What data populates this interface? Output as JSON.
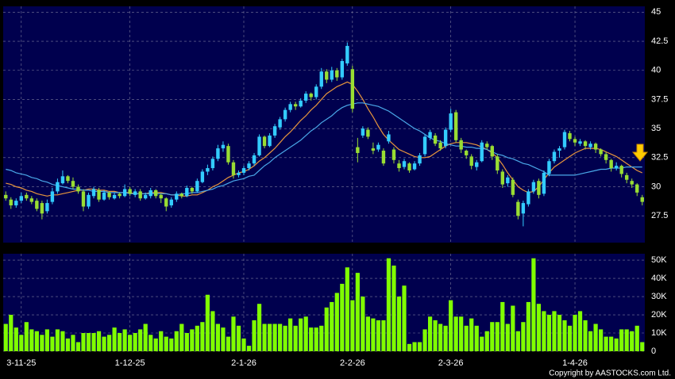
{
  "chart_data": [
    {
      "type": "candlestick",
      "categories": [
        null,
        null,
        null,
        "3-11-25",
        null,
        null,
        null,
        null,
        null,
        null,
        null,
        null,
        null,
        null,
        null,
        null,
        null,
        null,
        null,
        null,
        null,
        null,
        null,
        null,
        "1-12-25",
        null,
        null,
        null,
        null,
        null,
        null,
        null,
        null,
        null,
        null,
        null,
        null,
        null,
        null,
        null,
        null,
        null,
        null,
        null,
        null,
        null,
        "2-1-26",
        null,
        null,
        null,
        null,
        null,
        null,
        null,
        null,
        null,
        null,
        null,
        null,
        null,
        null,
        null,
        null,
        null,
        null,
        null,
        null,
        "2-2-26",
        null,
        null,
        null,
        null,
        null,
        null,
        null,
        null,
        null,
        null,
        null,
        null,
        null,
        null,
        null,
        null,
        null,
        null,
        "2-3-26",
        null,
        null,
        null,
        null,
        null,
        null,
        null,
        null,
        null,
        null,
        null,
        null,
        null,
        null,
        null,
        null,
        null,
        null,
        null,
        null,
        null,
        null,
        null,
        "1-4-26",
        null,
        null,
        null,
        null,
        null,
        null,
        null,
        null,
        null,
        null,
        null,
        null,
        null
      ],
      "ohlc": [
        [
          29.3,
          29.6,
          28.8,
          29.0
        ],
        [
          28.9,
          29.1,
          28.1,
          28.4
        ],
        [
          28.4,
          29.0,
          28.2,
          28.8
        ],
        [
          28.8,
          29.5,
          28.6,
          29.2
        ],
        [
          29.3,
          29.5,
          28.8,
          29.0
        ],
        [
          29.0,
          29.2,
          28.5,
          28.7
        ],
        [
          28.8,
          29.0,
          27.9,
          28.1
        ],
        [
          28.6,
          28.8,
          27.2,
          27.7
        ],
        [
          27.9,
          28.9,
          27.7,
          28.6
        ],
        [
          28.7,
          29.9,
          28.5,
          29.6
        ],
        [
          29.6,
          30.7,
          29.4,
          30.4
        ],
        [
          30.3,
          31.4,
          30.2,
          30.9
        ],
        [
          30.9,
          31.0,
          30.3,
          30.5
        ],
        [
          30.5,
          30.8,
          29.8,
          30.0
        ],
        [
          30.0,
          30.2,
          29.4,
          29.6
        ],
        [
          29.6,
          29.8,
          27.9,
          28.3
        ],
        [
          28.3,
          29.5,
          28.1,
          29.3
        ],
        [
          29.2,
          30.0,
          29.0,
          29.8
        ],
        [
          29.7,
          29.9,
          28.7,
          28.9
        ],
        [
          28.9,
          29.7,
          28.8,
          29.5
        ],
        [
          29.5,
          29.6,
          28.9,
          29.1
        ],
        [
          29.0,
          29.5,
          28.9,
          29.3
        ],
        [
          29.4,
          29.5,
          29.0,
          29.2
        ],
        [
          29.2,
          30.2,
          29.1,
          29.8
        ],
        [
          29.8,
          30.0,
          29.2,
          29.4
        ],
        [
          29.3,
          29.8,
          29.1,
          29.6
        ],
        [
          29.6,
          29.8,
          28.8,
          29.0
        ],
        [
          29.0,
          29.5,
          28.9,
          29.3
        ],
        [
          29.2,
          29.9,
          29.0,
          29.7
        ],
        [
          29.7,
          29.8,
          29.0,
          29.2
        ],
        [
          29.3,
          29.4,
          28.6,
          29.0
        ],
        [
          29.0,
          29.1,
          27.9,
          28.3
        ],
        [
          28.4,
          29.1,
          28.2,
          28.9
        ],
        [
          28.9,
          29.6,
          28.7,
          29.4
        ],
        [
          29.4,
          29.5,
          29.0,
          29.2
        ],
        [
          29.2,
          30.1,
          29.1,
          29.9
        ],
        [
          29.9,
          30.0,
          29.4,
          29.6
        ],
        [
          29.6,
          30.7,
          29.5,
          30.5
        ],
        [
          30.4,
          31.5,
          30.3,
          31.3
        ],
        [
          31.3,
          31.9,
          31.0,
          31.6
        ],
        [
          31.6,
          32.6,
          31.4,
          32.4
        ],
        [
          32.4,
          33.6,
          32.2,
          33.3
        ],
        [
          33.3,
          33.9,
          33.0,
          33.6
        ],
        [
          33.5,
          33.7,
          31.9,
          32.1
        ],
        [
          32.1,
          32.3,
          30.7,
          31.0
        ],
        [
          31.0,
          31.4,
          30.8,
          31.2
        ],
        [
          31.2,
          31.8,
          31.0,
          31.6
        ],
        [
          31.6,
          32.2,
          31.4,
          32.0
        ],
        [
          32.0,
          32.9,
          31.8,
          32.7
        ],
        [
          32.7,
          34.5,
          32.6,
          34.3
        ],
        [
          34.3,
          34.4,
          33.3,
          33.5
        ],
        [
          33.5,
          34.6,
          33.4,
          34.4
        ],
        [
          34.4,
          35.4,
          34.2,
          35.2
        ],
        [
          35.1,
          36.0,
          34.9,
          35.8
        ],
        [
          35.8,
          36.8,
          35.6,
          36.6
        ],
        [
          36.6,
          37.3,
          36.4,
          37.1
        ],
        [
          37.1,
          37.3,
          36.6,
          36.9
        ],
        [
          36.9,
          37.6,
          36.8,
          37.4
        ],
        [
          37.4,
          38.2,
          37.2,
          38.0
        ],
        [
          38.0,
          38.1,
          37.4,
          37.7
        ],
        [
          37.7,
          38.8,
          37.5,
          38.6
        ],
        [
          38.6,
          40.2,
          38.4,
          39.9
        ],
        [
          39.9,
          40.1,
          38.9,
          39.2
        ],
        [
          39.2,
          40.3,
          39.0,
          40.0
        ],
        [
          40.0,
          40.2,
          39.1,
          39.4
        ],
        [
          39.4,
          41.0,
          39.2,
          40.8
        ],
        [
          40.6,
          42.4,
          40.4,
          42.1
        ],
        [
          40.1,
          40.4,
          36.4,
          36.7
        ],
        [
          33.4,
          34.2,
          32.1,
          32.9
        ],
        [
          34.4,
          35.2,
          34.2,
          35.0
        ],
        [
          34.9,
          35.1,
          34.1,
          34.3
        ],
        [
          33.3,
          33.8,
          32.8,
          33.1
        ],
        [
          33.2,
          33.8,
          33.0,
          33.6
        ],
        [
          33.1,
          33.3,
          31.8,
          32.0
        ],
        [
          33.9,
          34.8,
          33.7,
          34.5
        ],
        [
          33.2,
          33.4,
          32.0,
          32.3
        ],
        [
          32.0,
          32.3,
          31.3,
          31.6
        ],
        [
          31.7,
          32.4,
          31.5,
          32.2
        ],
        [
          32.0,
          32.1,
          31.2,
          31.4
        ],
        [
          31.5,
          32.2,
          31.4,
          32.0
        ],
        [
          32.0,
          32.9,
          31.8,
          32.7
        ],
        [
          32.8,
          34.5,
          32.6,
          34.3
        ],
        [
          34.2,
          34.9,
          34.0,
          34.7
        ],
        [
          34.4,
          34.6,
          33.5,
          33.7
        ],
        [
          33.8,
          34.0,
          33.1,
          33.3
        ],
        [
          33.5,
          35.1,
          33.3,
          34.9
        ],
        [
          34.9,
          36.7,
          34.7,
          36.3
        ],
        [
          36.4,
          36.6,
          33.8,
          34.0
        ],
        [
          34.0,
          34.2,
          32.9,
          33.2
        ],
        [
          33.1,
          33.2,
          32.4,
          32.7
        ],
        [
          32.6,
          32.8,
          31.5,
          31.8
        ],
        [
          31.7,
          32.3,
          31.4,
          32.1
        ],
        [
          32.2,
          34.0,
          32.1,
          33.8
        ],
        [
          33.7,
          33.9,
          33.2,
          33.4
        ],
        [
          33.5,
          33.6,
          32.3,
          32.6
        ],
        [
          32.6,
          32.8,
          31.1,
          31.4
        ],
        [
          31.3,
          31.5,
          29.9,
          30.2
        ],
        [
          30.3,
          31.0,
          30.0,
          30.8
        ],
        [
          30.6,
          30.8,
          29.1,
          29.3
        ],
        [
          28.7,
          28.9,
          27.2,
          27.5
        ],
        [
          27.7,
          28.8,
          26.6,
          28.6
        ],
        [
          28.5,
          29.8,
          28.3,
          29.6
        ],
        [
          29.6,
          30.6,
          29.4,
          30.4
        ],
        [
          30.5,
          30.7,
          29.0,
          29.3
        ],
        [
          29.4,
          31.4,
          29.2,
          31.2
        ],
        [
          31.1,
          32.4,
          30.9,
          32.2
        ],
        [
          32.2,
          33.2,
          32.0,
          33.0
        ],
        [
          33.1,
          33.5,
          32.5,
          33.3
        ],
        [
          33.4,
          34.9,
          33.2,
          34.7
        ],
        [
          34.6,
          34.8,
          33.9,
          34.1
        ],
        [
          34.1,
          34.3,
          33.5,
          33.8
        ],
        [
          33.7,
          34.1,
          33.5,
          33.9
        ],
        [
          33.9,
          34.0,
          33.2,
          33.5
        ],
        [
          33.4,
          33.9,
          33.2,
          33.7
        ],
        [
          33.7,
          33.8,
          32.9,
          33.2
        ],
        [
          33.2,
          33.3,
          32.6,
          32.8
        ],
        [
          32.8,
          33.0,
          32.0,
          32.3
        ],
        [
          32.3,
          32.4,
          31.3,
          31.6
        ],
        [
          31.6,
          32.1,
          31.4,
          31.8
        ],
        [
          31.8,
          31.9,
          30.8,
          31.1
        ],
        [
          31.0,
          31.2,
          30.3,
          30.6
        ],
        [
          30.5,
          30.7,
          29.9,
          30.2
        ],
        [
          30.2,
          30.3,
          29.2,
          29.5
        ],
        [
          29.1,
          29.3,
          28.4,
          28.7
        ]
      ],
      "up_color": "#33ccff",
      "down_color": "#99dd33",
      "lines": [
        {
          "color": "#e8963c",
          "values": [
            30.3,
            30.2,
            30.0,
            29.9,
            29.7,
            29.6,
            29.4,
            29.3,
            29.2,
            29.3,
            29.3,
            29.4,
            29.5,
            29.6,
            29.7,
            29.7,
            29.8,
            29.8,
            29.7,
            29.7,
            29.6,
            29.6,
            29.5,
            29.5,
            29.5,
            29.4,
            29.4,
            29.4,
            29.5,
            29.5,
            29.5,
            29.4,
            29.3,
            29.3,
            29.2,
            29.2,
            29.3,
            29.3,
            29.5,
            29.7,
            30.0,
            30.2,
            30.5,
            30.8,
            31.0,
            31.2,
            31.3,
            31.5,
            31.8,
            32.2,
            32.5,
            32.9,
            33.3,
            33.8,
            34.3,
            34.7,
            35.2,
            35.7,
            36.1,
            36.6,
            37.0,
            37.5,
            38.0,
            38.3,
            38.6,
            38.8,
            39.0,
            38.8,
            38.2,
            37.5,
            36.7,
            36.0,
            35.2,
            34.5,
            34.0,
            33.6,
            33.2,
            33.0,
            32.8,
            32.6,
            32.5,
            32.5,
            32.6,
            32.9,
            33.2,
            33.5,
            33.7,
            33.8,
            33.8,
            33.8,
            33.7,
            33.6,
            33.4,
            33.2,
            32.9,
            32.5,
            31.9,
            31.2,
            30.6,
            30.0,
            29.7,
            29.5,
            29.6,
            30.0,
            30.6,
            31.2,
            31.7,
            32.0,
            32.3,
            32.6,
            32.9,
            33.1,
            33.3,
            33.3,
            33.3,
            33.2,
            33.0,
            32.8,
            32.6,
            32.3,
            32.0,
            31.7,
            31.4,
            31.2
          ]
        },
        {
          "color": "#4aa8e8",
          "values": [
            31.5,
            31.4,
            31.2,
            31.1,
            31.0,
            30.8,
            30.7,
            30.5,
            30.4,
            30.2,
            30.1,
            30.0,
            29.9,
            29.8,
            29.8,
            29.7,
            29.7,
            29.6,
            29.6,
            29.6,
            29.5,
            29.5,
            29.5,
            29.5,
            29.4,
            29.4,
            29.4,
            29.4,
            29.4,
            29.4,
            29.4,
            29.4,
            29.3,
            29.3,
            29.4,
            29.4,
            29.5,
            29.5,
            29.6,
            29.7,
            29.8,
            30.0,
            30.1,
            30.3,
            30.5,
            30.6,
            30.7,
            30.9,
            31.0,
            31.4,
            31.8,
            32.1,
            32.5,
            32.8,
            33.1,
            33.4,
            33.7,
            34.0,
            34.4,
            34.8,
            35.1,
            35.5,
            35.8,
            36.1,
            36.5,
            36.8,
            37.0,
            37.1,
            37.2,
            37.2,
            37.1,
            37.0,
            36.9,
            36.7,
            36.5,
            36.2,
            35.9,
            35.6,
            35.3,
            35.0,
            34.8,
            34.5,
            34.2,
            34.0,
            33.9,
            33.7,
            33.6,
            33.5,
            33.5,
            33.4,
            33.4,
            33.3,
            33.3,
            33.2,
            33.0,
            32.8,
            32.7,
            32.5,
            32.4,
            32.2,
            32.0,
            31.9,
            31.7,
            31.5,
            31.3,
            31.0,
            31.0,
            31.0,
            31.0,
            31.0,
            31.0,
            31.1,
            31.2,
            31.3,
            31.4,
            31.5,
            31.5,
            31.6,
            31.6,
            31.6,
            31.7,
            31.7,
            31.7,
            31.7
          ]
        }
      ],
      "ylim": [
        25.2,
        45.5
      ],
      "yticks": [
        27.5,
        30,
        32.5,
        35,
        37.5,
        40,
        42.5,
        45
      ],
      "grid": true
    },
    {
      "type": "bar",
      "color": "#80ff00",
      "values": [
        15000,
        20000,
        13000,
        9000,
        16000,
        12000,
        11000,
        9000,
        12000,
        8000,
        12000,
        11000,
        7000,
        9000,
        5000,
        10000,
        10000,
        10000,
        11000,
        8000,
        9000,
        13000,
        10000,
        12000,
        9000,
        10000,
        12000,
        15000,
        9000,
        7000,
        11000,
        8000,
        7000,
        11000,
        15000,
        10000,
        12000,
        14000,
        16000,
        31000,
        22000,
        15000,
        13000,
        8000,
        19000,
        14000,
        7000,
        3000,
        17000,
        26000,
        15000,
        15000,
        15000,
        15000,
        14000,
        18000,
        14000,
        18000,
        19000,
        13000,
        13000,
        14000,
        24000,
        27000,
        32000,
        37000,
        46000,
        28000,
        43000,
        30000,
        19000,
        18000,
        17000,
        17000,
        51000,
        47000,
        30000,
        36000,
        4000,
        5000,
        5000,
        12000,
        19000,
        17000,
        15000,
        14000,
        28000,
        19000,
        19000,
        14000,
        18000,
        14000,
        8000,
        11000,
        16000,
        16000,
        27000,
        15000,
        25000,
        11000,
        16000,
        27000,
        51000,
        26000,
        22000,
        20000,
        22000,
        20000,
        17000,
        14000,
        20000,
        22000,
        17000,
        11000,
        15000,
        12000,
        8000,
        8000,
        7000,
        12000,
        12000,
        11000,
        14000,
        5000
      ],
      "ylim": [
        0,
        53500
      ],
      "yticks": [
        0,
        {
          "value": 10000,
          "label": "10K"
        },
        {
          "value": 20000,
          "label": "20K"
        },
        {
          "value": 30000,
          "label": "30K"
        },
        {
          "value": 40000,
          "label": "40K"
        },
        {
          "value": 50000,
          "label": "50K"
        }
      ],
      "grid": true
    }
  ],
  "copyright": "Copyright by AASTOCKS.com Ltd."
}
